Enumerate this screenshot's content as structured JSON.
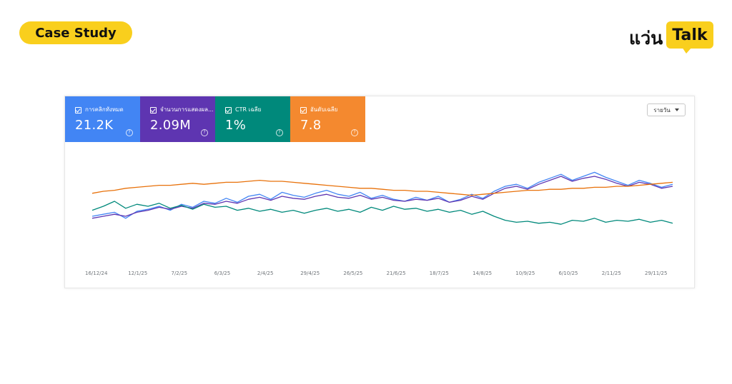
{
  "header": {
    "badge_label": "Case Study",
    "logo_prefix": "แว่น",
    "logo_highlight": "Talk"
  },
  "colors": {
    "badge": "#f9cf1d",
    "clicks": "#4285f4",
    "impressions": "#5e35b1",
    "ctr": "#00897b",
    "position": "#e8710a"
  },
  "metrics": [
    {
      "key": "clicks",
      "label": "การคลิกทั้งหมด",
      "value": "21.2K",
      "color": "#4285f4",
      "checked": true
    },
    {
      "key": "impressions",
      "label": "จำนวนการแสดงผล...",
      "value": "2.09M",
      "color": "#5e35b1",
      "checked": true
    },
    {
      "key": "ctr",
      "label": "CTR เฉลี่ย",
      "value": "1%",
      "color": "#00897b",
      "checked": true
    },
    {
      "key": "position",
      "label": "อันดับเฉลี่ย",
      "value": "7.8",
      "color": "#f4892f",
      "checked": true
    }
  ],
  "controls": {
    "period_label": "รายวัน"
  },
  "chart_data": {
    "type": "line",
    "x_tick_labels": [
      "16/12/24",
      "12/1/25",
      "7/2/25",
      "6/3/25",
      "2/4/25",
      "29/4/25",
      "26/5/25",
      "21/6/25",
      "18/7/25",
      "14/8/25",
      "10/9/25",
      "6/10/25",
      "2/11/25",
      "29/11/25"
    ],
    "x_start": "16/12/24",
    "x_end": "14/12/25",
    "y_axes_visible": false,
    "grid": false,
    "series": [
      {
        "name": "การคลิกทั้งหมด",
        "color": "#4285f4",
        "values": [
          40,
          42,
          44,
          38,
          45,
          47,
          50,
          46,
          52,
          49,
          55,
          53,
          58,
          54,
          60,
          62,
          57,
          64,
          61,
          59,
          63,
          66,
          62,
          60,
          64,
          58,
          61,
          57,
          55,
          59,
          56,
          60,
          54,
          57,
          62,
          58,
          65,
          70,
          72,
          68,
          74,
          78,
          82,
          76,
          80,
          84,
          79,
          75,
          71,
          76,
          73,
          69,
          72
        ]
      },
      {
        "name": "จำนวนการแสดงผล",
        "color": "#5e35b1",
        "values": [
          38,
          40,
          42,
          40,
          44,
          46,
          49,
          47,
          50,
          48,
          53,
          52,
          55,
          53,
          57,
          59,
          56,
          60,
          58,
          57,
          60,
          62,
          59,
          58,
          61,
          57,
          59,
          56,
          55,
          57,
          56,
          58,
          54,
          56,
          60,
          57,
          63,
          68,
          70,
          67,
          72,
          76,
          80,
          75,
          78,
          80,
          77,
          73,
          70,
          74,
          72,
          68,
          70
        ]
      },
      {
        "name": "CTR เฉลี่ย",
        "color": "#00897b",
        "values": [
          46,
          50,
          55,
          48,
          52,
          50,
          53,
          48,
          51,
          47,
          52,
          49,
          50,
          46,
          48,
          45,
          47,
          44,
          46,
          43,
          46,
          48,
          45,
          47,
          44,
          49,
          46,
          50,
          47,
          48,
          45,
          47,
          44,
          46,
          42,
          45,
          40,
          36,
          34,
          35,
          33,
          34,
          32,
          36,
          35,
          38,
          34,
          36,
          35,
          37,
          34,
          36,
          33
        ]
      },
      {
        "name": "อันดับเฉลี่ย",
        "color": "#e8710a",
        "values": [
          63,
          65,
          66,
          68,
          69,
          70,
          71,
          71,
          72,
          73,
          72,
          73,
          74,
          74,
          75,
          76,
          75,
          75,
          74,
          73,
          72,
          71,
          70,
          69,
          68,
          68,
          67,
          66,
          66,
          65,
          65,
          64,
          63,
          62,
          61,
          62,
          63,
          64,
          65,
          66,
          66,
          67,
          67,
          68,
          68,
          69,
          69,
          70,
          70,
          71,
          72,
          73,
          74
        ]
      }
    ]
  }
}
